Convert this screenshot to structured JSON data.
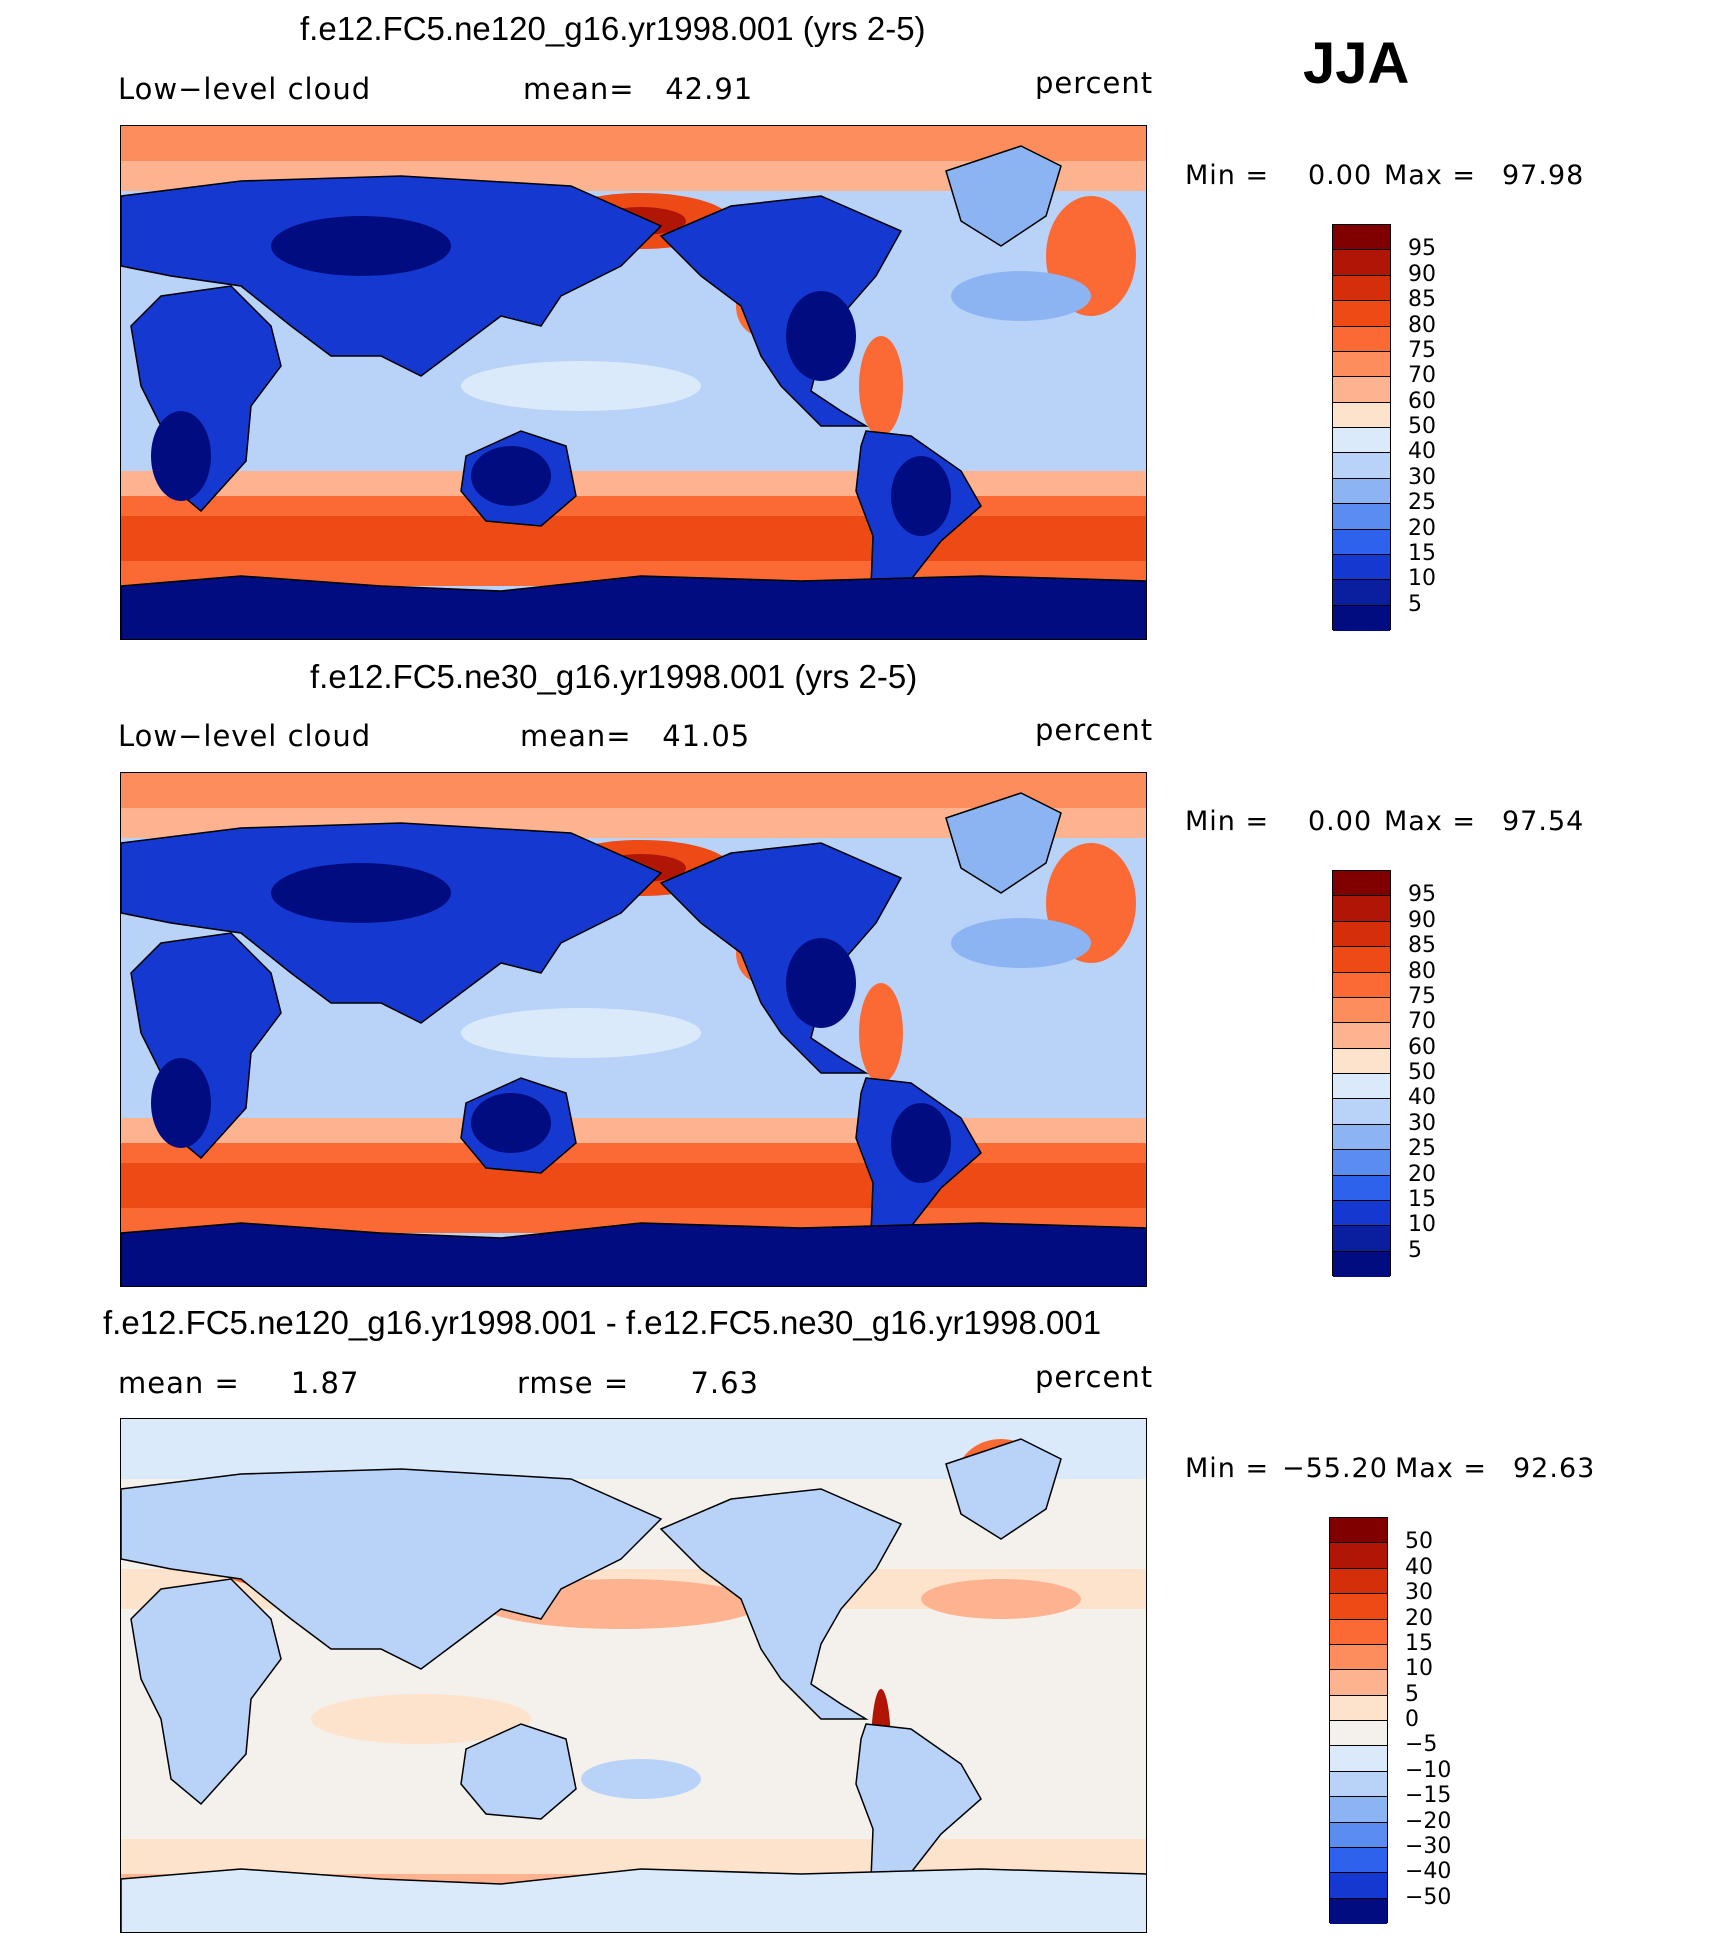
{
  "season": "JJA",
  "panels": [
    {
      "title": "f.e12.FC5.ne120_g16.yr1998.001 (yrs 2-5)",
      "left_label": "Low−level cloud",
      "center_label": "mean=   42.91",
      "units": "percent",
      "min_label": "Min =",
      "min_value": "0.00",
      "max_label": "Max =",
      "max_value": "97.98",
      "colorbar_labels": [
        "95",
        "90",
        "85",
        "80",
        "75",
        "70",
        "60",
        "50",
        "40",
        "30",
        "25",
        "20",
        "15",
        "10",
        "5"
      ],
      "field_type": "absolute"
    },
    {
      "title": "f.e12.FC5.ne30_g16.yr1998.001 (yrs 2-5)",
      "left_label": "Low−level cloud",
      "center_label": "mean=   41.05",
      "units": "percent",
      "min_label": "Min =",
      "min_value": "0.00",
      "max_label": "Max =",
      "max_value": "97.54",
      "colorbar_labels": [
        "95",
        "90",
        "85",
        "80",
        "75",
        "70",
        "60",
        "50",
        "40",
        "30",
        "25",
        "20",
        "15",
        "10",
        "5"
      ],
      "field_type": "absolute"
    },
    {
      "title": "f.e12.FC5.ne120_g16.yr1998.001 - f.e12.FC5.ne30_g16.yr1998.001",
      "left_label": "mean =     1.87",
      "center_label": "rmse =      7.63",
      "units": "percent",
      "min_label": "Min =",
      "min_value": "−55.20",
      "max_label": "Max =",
      "max_value": "92.63",
      "colorbar_labels": [
        "50",
        "40",
        "30",
        "20",
        "15",
        "10",
        "5",
        "0",
        "−5",
        "−10",
        "−15",
        "−20",
        "−30",
        "−40",
        "−50"
      ],
      "field_type": "difference"
    }
  ],
  "colors": {
    "absolute_scale": [
      "#800000",
      "#b01505",
      "#d42e0a",
      "#ee4a16",
      "#fb6a35",
      "#fd8d5c",
      "#fdb390",
      "#fde2cc",
      "#dbeafb",
      "#b8d2f8",
      "#8db4f2",
      "#5a8def",
      "#2f62ec",
      "#1538d0",
      "#0a1fa0",
      "#000c80"
    ],
    "difference_scale": [
      "#800000",
      "#b01505",
      "#d42e0a",
      "#ee4a16",
      "#fb6a35",
      "#fd8d5c",
      "#fdb390",
      "#fde2cc",
      "#f4f0ec",
      "#dbeafb",
      "#b8d2f8",
      "#8db4f2",
      "#5a8def",
      "#2f62ec",
      "#1538d0",
      "#000c80"
    ]
  }
}
